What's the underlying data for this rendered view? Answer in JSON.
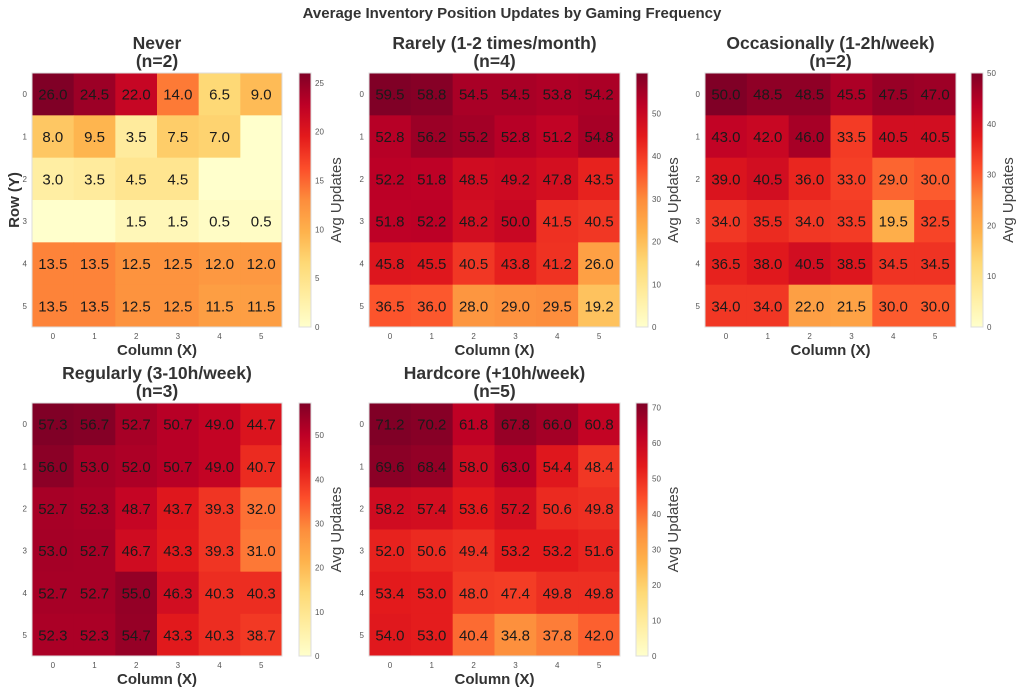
{
  "chart_data": {
    "type": "heatmap",
    "title": "Average Inventory Position Updates by Gaming Frequency",
    "colormap": "YlOrRd",
    "panels": [
      {
        "title": "Never",
        "subtitle": "(n=2)",
        "xlabel": "Column (X)",
        "ylabel": "Row (Y)",
        "colorbar_label": "Avg Updates",
        "x_ticks": [
          "0",
          "1",
          "2",
          "3",
          "4",
          "5"
        ],
        "y_ticks": [
          "0",
          "1",
          "2",
          "3",
          "4",
          "5"
        ],
        "colorbar_ticks": [
          "0",
          "5",
          "10",
          "15",
          "20",
          "25"
        ],
        "vmin": 0,
        "vmax": 26,
        "values": [
          [
            26.0,
            24.5,
            22.0,
            14.0,
            6.5,
            9.0
          ],
          [
            8.0,
            9.5,
            3.5,
            7.5,
            7.0,
            null
          ],
          [
            3.0,
            3.5,
            4.5,
            4.5,
            null,
            null
          ],
          [
            null,
            null,
            1.5,
            1.5,
            0.5,
            0.5
          ],
          [
            13.5,
            13.5,
            12.5,
            12.5,
            12.0,
            12.0
          ],
          [
            13.5,
            13.5,
            12.5,
            12.5,
            11.5,
            11.5
          ]
        ]
      },
      {
        "title": "Rarely (1-2 times/month)",
        "subtitle": "(n=4)",
        "xlabel": "Column (X)",
        "ylabel": "",
        "colorbar_label": "Avg Updates",
        "x_ticks": [
          "0",
          "1",
          "2",
          "3",
          "4",
          "5"
        ],
        "y_ticks": [
          "0",
          "1",
          "2",
          "3",
          "4",
          "5"
        ],
        "colorbar_ticks": [
          "0",
          "10",
          "20",
          "30",
          "40",
          "50"
        ],
        "vmin": 0,
        "vmax": 59.5,
        "values": [
          [
            59.5,
            58.8,
            54.5,
            54.5,
            53.8,
            54.2
          ],
          [
            52.8,
            56.2,
            55.2,
            52.8,
            51.2,
            54.8
          ],
          [
            52.2,
            51.8,
            48.5,
            49.2,
            47.8,
            43.5
          ],
          [
            51.8,
            52.2,
            48.2,
            50.0,
            41.5,
            40.5
          ],
          [
            45.8,
            45.5,
            40.5,
            43.8,
            41.2,
            26.0
          ],
          [
            36.5,
            36.0,
            28.0,
            29.0,
            29.5,
            19.2
          ]
        ]
      },
      {
        "title": "Occasionally (1-2h/week)",
        "subtitle": "(n=2)",
        "xlabel": "Column (X)",
        "ylabel": "",
        "colorbar_label": "Avg Updates",
        "x_ticks": [
          "0",
          "1",
          "2",
          "3",
          "4",
          "5"
        ],
        "y_ticks": [
          "0",
          "1",
          "2",
          "3",
          "4",
          "5"
        ],
        "colorbar_ticks": [
          "0",
          "10",
          "20",
          "30",
          "40",
          "50"
        ],
        "vmin": 0,
        "vmax": 50,
        "values": [
          [
            50.0,
            48.5,
            48.5,
            45.5,
            47.5,
            47.0
          ],
          [
            43.0,
            42.0,
            46.0,
            33.5,
            40.5,
            40.5
          ],
          [
            39.0,
            40.5,
            36.0,
            33.0,
            29.0,
            30.0
          ],
          [
            34.0,
            35.5,
            34.0,
            33.5,
            19.5,
            32.5
          ],
          [
            36.5,
            38.0,
            40.5,
            38.5,
            34.5,
            34.5
          ],
          [
            34.0,
            34.0,
            22.0,
            21.5,
            30.0,
            30.0
          ]
        ]
      },
      {
        "title": "Regularly (3-10h/week)",
        "subtitle": "(n=3)",
        "xlabel": "Column (X)",
        "ylabel": "",
        "colorbar_label": "Avg Updates",
        "x_ticks": [
          "0",
          "1",
          "2",
          "3",
          "4",
          "5"
        ],
        "y_ticks": [
          "0",
          "1",
          "2",
          "3",
          "4",
          "5"
        ],
        "colorbar_ticks": [
          "0",
          "10",
          "20",
          "30",
          "40",
          "50"
        ],
        "vmin": 0,
        "vmax": 57.3,
        "values": [
          [
            57.3,
            56.7,
            52.7,
            50.7,
            49.0,
            44.7
          ],
          [
            56.0,
            53.0,
            52.0,
            50.7,
            49.0,
            40.7
          ],
          [
            52.7,
            52.3,
            48.7,
            43.7,
            39.3,
            32.0
          ],
          [
            53.0,
            52.7,
            46.7,
            43.3,
            39.3,
            31.0
          ],
          [
            52.7,
            52.7,
            55.0,
            46.3,
            40.3,
            40.3
          ],
          [
            52.3,
            52.3,
            54.7,
            43.3,
            40.3,
            38.7
          ]
        ]
      },
      {
        "title": "Hardcore (+10h/week)",
        "subtitle": "(n=5)",
        "xlabel": "Column (X)",
        "ylabel": "",
        "colorbar_label": "Avg Updates",
        "x_ticks": [
          "0",
          "1",
          "2",
          "3",
          "4",
          "5"
        ],
        "y_ticks": [
          "0",
          "1",
          "2",
          "3",
          "4",
          "5"
        ],
        "colorbar_ticks": [
          "0",
          "10",
          "20",
          "30",
          "40",
          "50",
          "60",
          "70"
        ],
        "vmin": 0,
        "vmax": 71.2,
        "values": [
          [
            71.2,
            70.2,
            61.8,
            67.8,
            66.0,
            60.8
          ],
          [
            69.6,
            68.4,
            58.0,
            63.0,
            54.4,
            48.4
          ],
          [
            58.2,
            57.4,
            53.6,
            57.2,
            50.6,
            49.8
          ],
          [
            52.0,
            50.6,
            49.4,
            53.2,
            53.2,
            51.6
          ],
          [
            53.4,
            53.0,
            48.0,
            47.4,
            49.8,
            49.8
          ],
          [
            54.0,
            53.0,
            40.4,
            34.8,
            37.8,
            42.0
          ]
        ]
      }
    ]
  }
}
